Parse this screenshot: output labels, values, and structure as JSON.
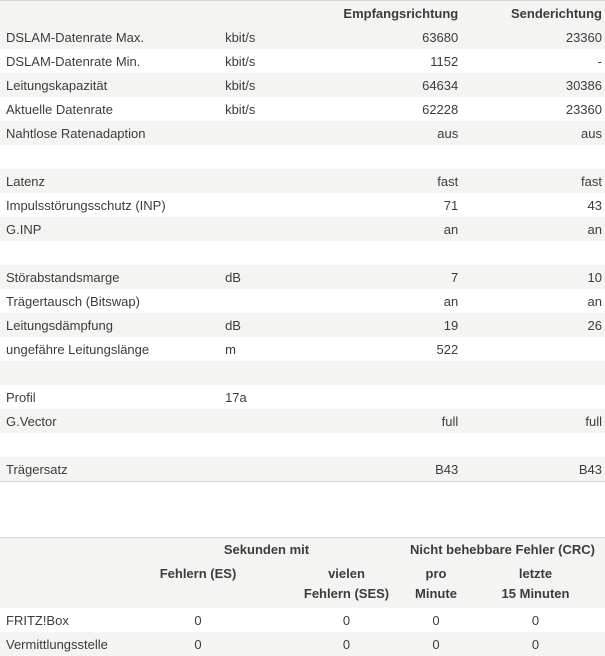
{
  "line_table": {
    "headers": {
      "label": "",
      "unit": "",
      "downstream": "Empfangsrichtung",
      "upstream": "Senderichtung"
    },
    "rows": [
      {
        "label": "DSLAM-Datenrate Max.",
        "unit": "kbit/s",
        "down": "63680",
        "up": "23360"
      },
      {
        "label": "DSLAM-Datenrate Min.",
        "unit": "kbit/s",
        "down": "1152",
        "up": "-"
      },
      {
        "label": "Leitungskapazität",
        "unit": "kbit/s",
        "down": "64634",
        "up": "30386"
      },
      {
        "label": "Aktuelle Datenrate",
        "unit": "kbit/s",
        "down": "62228",
        "up": "23360"
      },
      {
        "label": "Nahtlose Ratenadaption",
        "unit": "",
        "down": "aus",
        "up": "aus"
      },
      {
        "label": "",
        "unit": "",
        "down": "",
        "up": ""
      },
      {
        "label": "Latenz",
        "unit": "",
        "down": "fast",
        "up": "fast"
      },
      {
        "label": "Impulsstörungsschutz (INP)",
        "unit": "",
        "down": "71",
        "up": "43"
      },
      {
        "label": "G.INP",
        "unit": "",
        "down": "an",
        "up": "an"
      },
      {
        "label": "",
        "unit": "",
        "down": "",
        "up": ""
      },
      {
        "label": "Störabstandsmarge",
        "unit": "dB",
        "down": "7",
        "up": "10"
      },
      {
        "label": "Trägertausch (Bitswap)",
        "unit": "",
        "down": "an",
        "up": "an"
      },
      {
        "label": "Leitungsdämpfung",
        "unit": "dB",
        "down": "19",
        "up": "26"
      },
      {
        "label": "ungefähre Leitungslänge",
        "unit": "m",
        "down": "522",
        "up": ""
      },
      {
        "label": "",
        "unit": "",
        "down": "",
        "up": ""
      },
      {
        "label": "Profil",
        "unit": "17a",
        "down": "",
        "up": ""
      },
      {
        "label": "G.Vector",
        "unit": "",
        "down": "full",
        "up": "full"
      },
      {
        "label": "",
        "unit": "",
        "down": "",
        "up": ""
      },
      {
        "label": "Trägersatz",
        "unit": "",
        "down": "B43",
        "up": "B43"
      }
    ]
  },
  "error_table": {
    "group_headers": {
      "seconds": "Sekunden mit",
      "crc": "Nicht behebbare Fehler (CRC)"
    },
    "sub_headers": {
      "es": "Fehlern (ES)",
      "ses_1": "vielen",
      "ses_2": "Fehlern (SES)",
      "pm_1": "pro",
      "pm_2": "Minute",
      "l15_1": "letzte",
      "l15_2": "15 Minuten"
    },
    "rows": [
      {
        "label": "FRITZ!Box",
        "es": "0",
        "ses": "0",
        "per_min": "0",
        "last15": "0"
      },
      {
        "label": "Vermittlungsstelle",
        "es": "0",
        "ses": "0",
        "per_min": "0",
        "last15": "0"
      }
    ]
  }
}
